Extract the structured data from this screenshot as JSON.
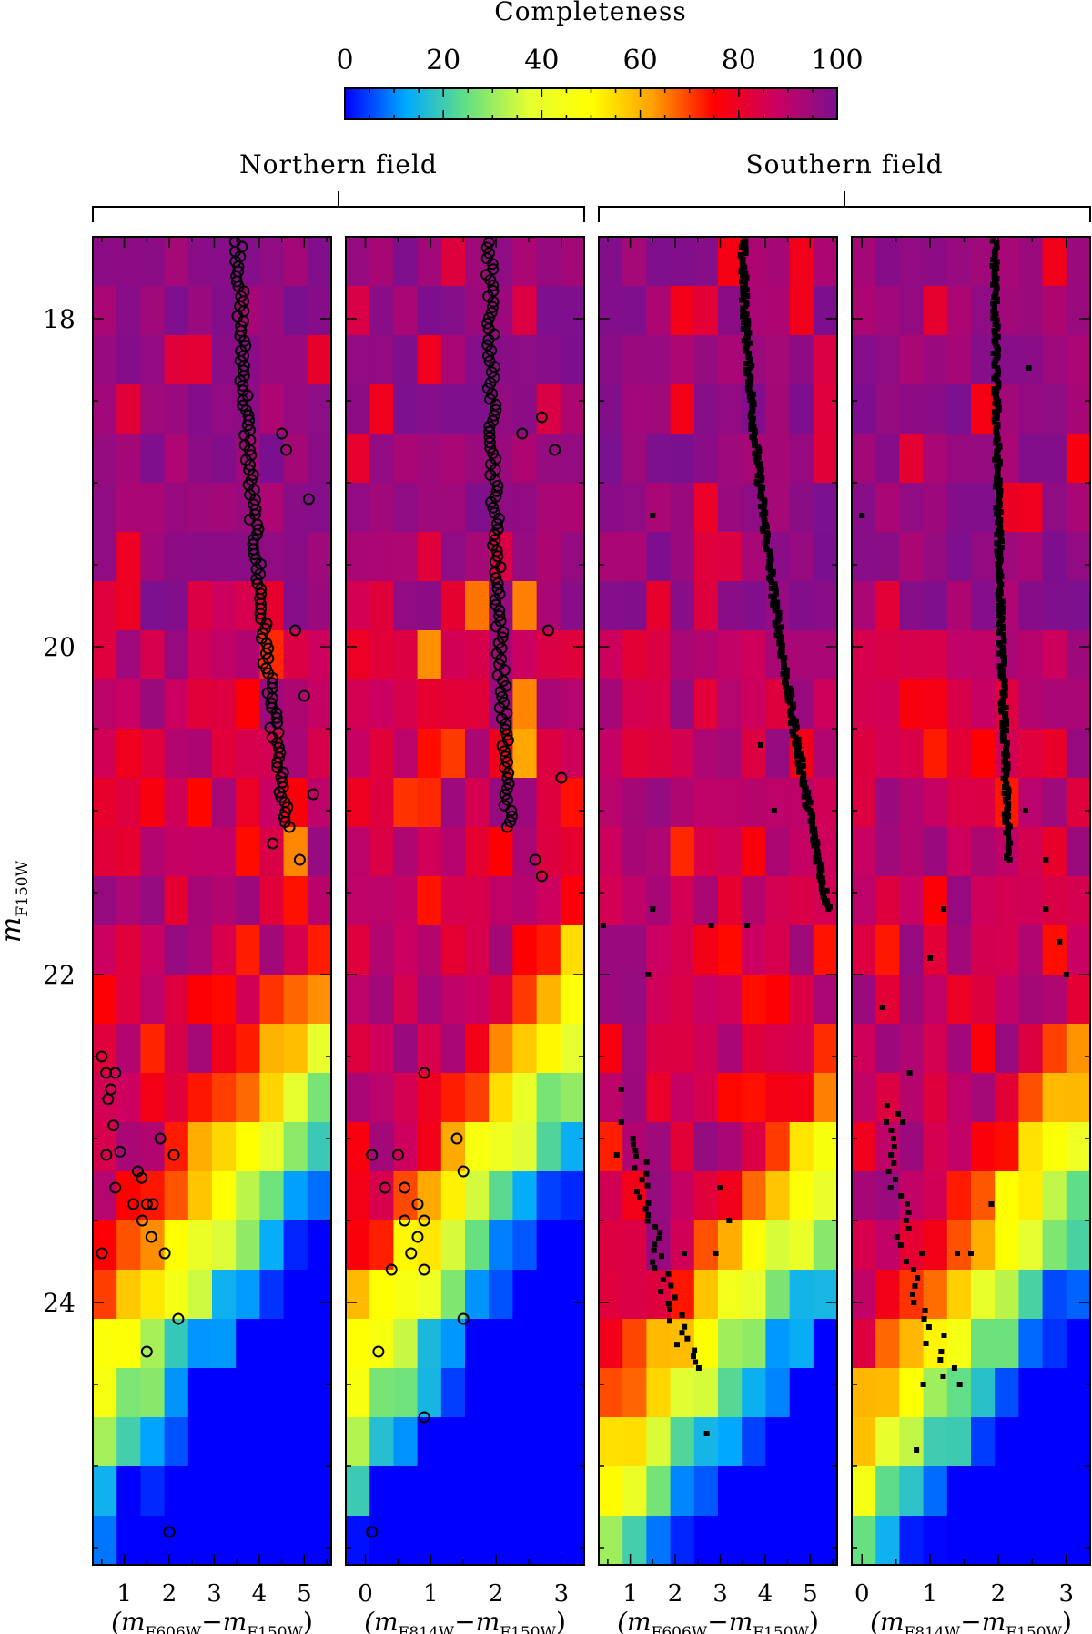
{
  "colorbar": {
    "title": "Completeness",
    "range": [
      0,
      100
    ],
    "tick_labels": [
      "0",
      "20",
      "40",
      "60",
      "80",
      "100"
    ],
    "tick_values": [
      0,
      20,
      40,
      60,
      80,
      100
    ]
  },
  "groups": [
    {
      "label": "Northern field",
      "panels": [
        0,
        1
      ]
    },
    {
      "label": "Southern field",
      "panels": [
        2,
        3
      ]
    }
  ],
  "y_axis": {
    "label_main": "m",
    "label_sub": "F150W",
    "range": [
      17.5,
      25.6
    ],
    "inverted": true,
    "tick_labels": [
      "18",
      "20",
      "22",
      "24"
    ],
    "tick_values": [
      18,
      20,
      22,
      24
    ]
  },
  "colors": {
    "scale_stops": [
      "#0000ff",
      "#00aaff",
      "#66e080",
      "#e6ff30",
      "#ffff00",
      "#ffa000",
      "#ff0000",
      "#cc0060",
      "#7a1090"
    ],
    "marker": "#000000",
    "frame": "#000000"
  },
  "chart_data": [
    {
      "type": "heatmap",
      "field": "Northern field",
      "xlabel_main": "(m",
      "xlabel_sub1": "F606W",
      "xlabel_mid": "−m",
      "xlabel_sub2": "F150W",
      "xlabel_end": ")",
      "xlim": [
        0.3,
        5.6
      ],
      "x_tick_labels": [
        "1",
        "2",
        "3",
        "4",
        "5"
      ],
      "x_tick_values": [
        1,
        2,
        3,
        4,
        5
      ],
      "ylim": [
        17.5,
        25.6
      ],
      "marker": "open-circle",
      "star_branches": [
        {
          "x0": 3.55,
          "y0": 17.5,
          "x1": 4.6,
          "y1": 21.1,
          "n": 120,
          "scatter_x": 0.09
        },
        {
          "x0": 0.5,
          "y0": 22.6,
          "x1": 1.6,
          "y1": 23.4,
          "n": 6,
          "scatter_x": 0.12
        }
      ],
      "stars_extra": [
        [
          4.5,
          18.7
        ],
        [
          4.6,
          18.8
        ],
        [
          5.1,
          19.1
        ],
        [
          4.8,
          19.9
        ],
        [
          5.0,
          20.3
        ],
        [
          5.2,
          20.9
        ],
        [
          4.3,
          21.2
        ],
        [
          4.9,
          21.3
        ],
        [
          0.5,
          22.5
        ],
        [
          0.8,
          22.6
        ],
        [
          0.7,
          22.7
        ],
        [
          0.6,
          23.1
        ],
        [
          1.8,
          23.0
        ],
        [
          2.1,
          23.1
        ],
        [
          1.3,
          23.2
        ],
        [
          0.8,
          23.3
        ],
        [
          1.5,
          23.4
        ],
        [
          1.4,
          23.5
        ],
        [
          1.6,
          23.6
        ],
        [
          1.2,
          23.4
        ],
        [
          0.5,
          23.7
        ],
        [
          1.9,
          23.7
        ],
        [
          2.2,
          24.1
        ],
        [
          1.5,
          24.3
        ],
        [
          2.0,
          25.4
        ]
      ]
    },
    {
      "type": "heatmap",
      "field": "Northern field",
      "xlabel_main": "(m",
      "xlabel_sub1": "F814W",
      "xlabel_mid": "−m",
      "xlabel_sub2": "F150W",
      "xlabel_end": ")",
      "xlim": [
        -0.3,
        3.35
      ],
      "x_tick_labels": [
        "0",
        "1",
        "2",
        "3"
      ],
      "x_tick_values": [
        0,
        1,
        2,
        3
      ],
      "ylim": [
        17.5,
        25.6
      ],
      "marker": "open-circle",
      "star_branches": [
        {
          "x0": 1.9,
          "y0": 17.5,
          "x1": 2.2,
          "y1": 21.1,
          "n": 110,
          "scatter_x": 0.06
        }
      ],
      "stars_extra": [
        [
          2.4,
          18.7
        ],
        [
          2.7,
          18.6
        ],
        [
          2.9,
          18.8
        ],
        [
          2.8,
          19.9
        ],
        [
          3.0,
          20.8
        ],
        [
          2.6,
          21.3
        ],
        [
          2.7,
          21.4
        ],
        [
          0.9,
          22.6
        ],
        [
          0.1,
          23.1
        ],
        [
          0.5,
          23.1
        ],
        [
          1.4,
          23.0
        ],
        [
          0.6,
          23.3
        ],
        [
          0.3,
          23.3
        ],
        [
          0.8,
          23.4
        ],
        [
          0.6,
          23.5
        ],
        [
          0.9,
          23.5
        ],
        [
          1.5,
          23.2
        ],
        [
          0.8,
          23.6
        ],
        [
          0.7,
          23.7
        ],
        [
          0.4,
          23.8
        ],
        [
          0.9,
          23.8
        ],
        [
          1.5,
          24.1
        ],
        [
          0.2,
          24.3
        ],
        [
          0.9,
          24.7
        ],
        [
          0.1,
          25.4
        ]
      ]
    },
    {
      "type": "heatmap",
      "field": "Southern field",
      "xlabel_main": "(m",
      "xlabel_sub1": "F606W",
      "xlabel_mid": "−m",
      "xlabel_sub2": "F150W",
      "xlabel_end": ")",
      "xlim": [
        0.3,
        5.6
      ],
      "x_tick_labels": [
        "1",
        "2",
        "3",
        "4",
        "5"
      ],
      "x_tick_values": [
        1,
        2,
        3,
        4,
        5
      ],
      "ylim": [
        17.5,
        25.6
      ],
      "marker": "filled-square",
      "star_branches": [
        {
          "x0": 3.5,
          "y0": 17.5,
          "x1": 5.4,
          "y1": 21.6,
          "n": 330,
          "scatter_x": 0.07
        },
        {
          "x0": 1.2,
          "y0": 23.0,
          "x1": 2.4,
          "y1": 24.4,
          "n": 40,
          "scatter_x": 0.18
        }
      ],
      "stars_extra": [
        [
          1.5,
          19.2
        ],
        [
          1.5,
          21.6
        ],
        [
          2.8,
          21.7
        ],
        [
          0.4,
          21.7
        ],
        [
          1.4,
          22.0
        ],
        [
          0.3,
          22.2
        ],
        [
          0.8,
          22.7
        ],
        [
          0.8,
          22.9
        ],
        [
          0.7,
          23.1
        ],
        [
          3.0,
          23.3
        ],
        [
          3.2,
          23.5
        ],
        [
          3.6,
          21.7
        ],
        [
          2.2,
          23.7
        ],
        [
          2.9,
          23.7
        ],
        [
          2.7,
          24.8
        ],
        [
          4.2,
          21.0
        ],
        [
          3.9,
          20.6
        ]
      ]
    },
    {
      "type": "heatmap",
      "field": "Southern field",
      "xlabel_main": "(m",
      "xlabel_sub1": "F814W",
      "xlabel_mid": "−m",
      "xlabel_sub2": "F150W",
      "xlabel_end": ")",
      "xlim": [
        -0.15,
        3.35
      ],
      "x_tick_labels": [
        "0",
        "1",
        "2",
        "3"
      ],
      "x_tick_values": [
        0,
        1,
        2,
        3
      ],
      "ylim": [
        17.5,
        25.6
      ],
      "marker": "filled-square",
      "star_branches": [
        {
          "x0": 1.95,
          "y0": 17.5,
          "x1": 2.15,
          "y1": 21.3,
          "n": 300,
          "scatter_x": 0.04
        },
        {
          "x0": 0.4,
          "y0": 22.8,
          "x1": 1.3,
          "y1": 24.5,
          "n": 35,
          "scatter_x": 0.16
        }
      ],
      "stars_extra": [
        [
          2.45,
          18.3
        ],
        [
          0.0,
          19.2
        ],
        [
          1.2,
          21.6
        ],
        [
          2.7,
          21.3
        ],
        [
          2.7,
          21.6
        ],
        [
          2.9,
          21.8
        ],
        [
          3.0,
          22.0
        ],
        [
          1.0,
          21.9
        ],
        [
          0.3,
          22.2
        ],
        [
          0.7,
          22.6
        ],
        [
          0.6,
          22.9
        ],
        [
          1.9,
          23.4
        ],
        [
          1.4,
          23.7
        ],
        [
          1.6,
          23.7
        ],
        [
          0.9,
          24.5
        ],
        [
          0.8,
          24.9
        ],
        [
          2.4,
          21.0
        ]
      ]
    }
  ]
}
